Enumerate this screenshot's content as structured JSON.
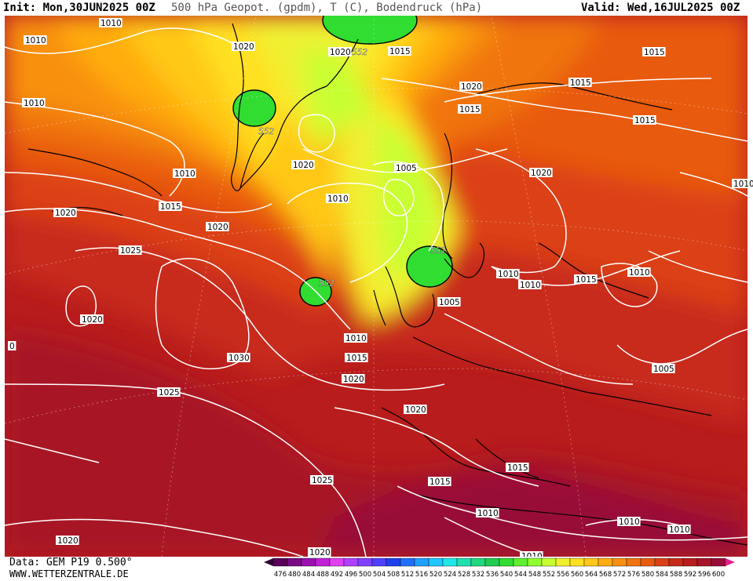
{
  "header": {
    "init": "Init: Mon,30JUN2025 00Z",
    "title": "500 hPa Geopot. (gpdm), T (C), Bodendruck (hPa)",
    "valid": "Valid: Wed,16JUL2025 00Z"
  },
  "footer": {
    "data_source": "Data: GEM P19 0.500°",
    "website": "WWW.WETTERZENTRALE.DE"
  },
  "legend": {
    "values": [
      "476",
      "480",
      "484",
      "488",
      "492",
      "496",
      "500",
      "504",
      "508",
      "512",
      "516",
      "520",
      "524",
      "528",
      "532",
      "536",
      "540",
      "544",
      "548",
      "552",
      "556",
      "560",
      "564",
      "568",
      "572",
      "576",
      "580",
      "584",
      "588",
      "592",
      "596",
      "600"
    ],
    "colors": [
      "#5a005a",
      "#7a0a86",
      "#9a10b0",
      "#c020d8",
      "#e040f0",
      "#b040ff",
      "#8040ff",
      "#5040ff",
      "#2040f0",
      "#2070ff",
      "#20a0ff",
      "#20c8ff",
      "#20e8e8",
      "#20e0b0",
      "#20d880",
      "#20cc50",
      "#30dd30",
      "#60ee30",
      "#90ff30",
      "#c8ff30",
      "#f0f030",
      "#ffe020",
      "#ffc818",
      "#ffac10",
      "#f89010",
      "#f07410",
      "#e85a10",
      "#dc4018",
      "#c82a1a",
      "#b81c1c",
      "#a81428",
      "#980c38"
    ],
    "low_color": "#300030",
    "high_color": "#e0208c"
  },
  "map": {
    "isobar_labels": [
      {
        "text": "1010"
      },
      {
        "text": "1010"
      },
      {
        "text": "1020"
      },
      {
        "text": "1020"
      },
      {
        "text": "552"
      },
      {
        "text": "1015"
      },
      {
        "text": "1010"
      },
      {
        "text": "1020"
      },
      {
        "text": "1015"
      },
      {
        "text": "1015"
      },
      {
        "text": "1015"
      },
      {
        "text": "552"
      },
      {
        "text": "1015"
      },
      {
        "text": "1010"
      },
      {
        "text": "1020"
      },
      {
        "text": "1005"
      },
      {
        "text": "1020"
      },
      {
        "text": "1010"
      },
      {
        "text": "1010"
      },
      {
        "text": "1020"
      },
      {
        "text": "1015"
      },
      {
        "text": "1020"
      },
      {
        "text": "1025"
      },
      {
        "text": "552"
      },
      {
        "text": "1010"
      },
      {
        "text": "1010"
      },
      {
        "text": "1015"
      },
      {
        "text": "1010"
      },
      {
        "text": "552"
      },
      {
        "text": "1005"
      },
      {
        "text": "1020"
      },
      {
        "text": "1010"
      },
      {
        "text": "1015"
      },
      {
        "text": "1030"
      },
      {
        "text": "1020"
      },
      {
        "text": "1025"
      },
      {
        "text": "1005"
      },
      {
        "text": "1020"
      },
      {
        "text": "1025"
      },
      {
        "text": "1015"
      },
      {
        "text": "1015"
      },
      {
        "text": "1010"
      },
      {
        "text": "1010"
      },
      {
        "text": "1010"
      },
      {
        "text": "1020"
      },
      {
        "text": "1020"
      },
      {
        "text": "1010"
      },
      {
        "text": "0"
      }
    ]
  }
}
